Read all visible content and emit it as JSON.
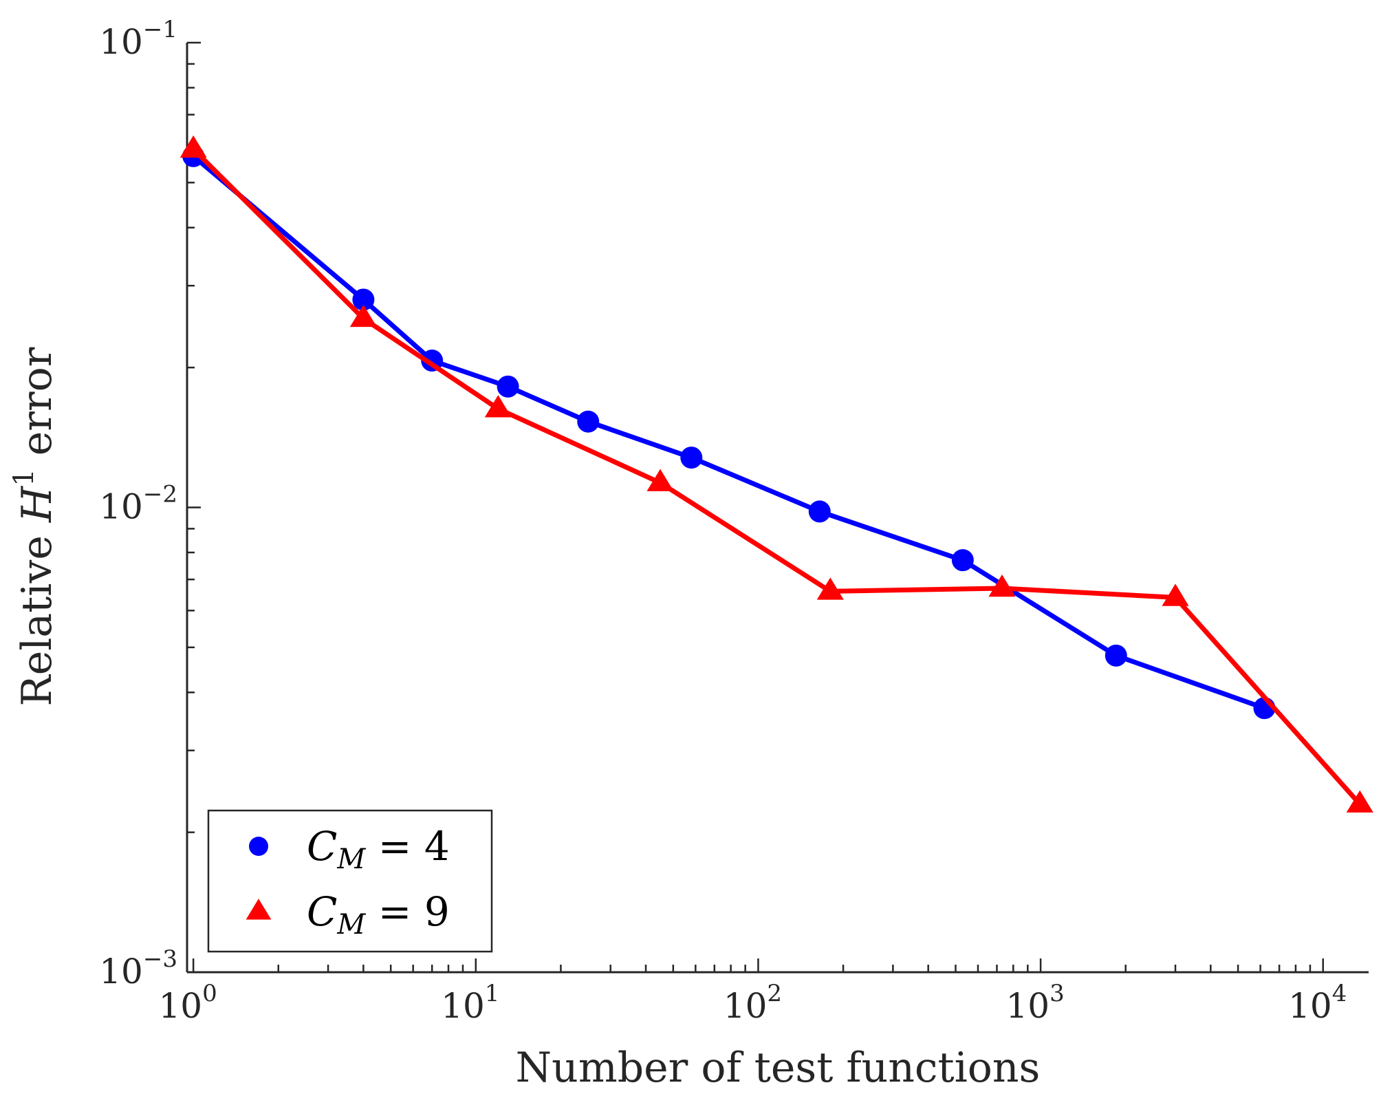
{
  "chart_data": {
    "type": "line",
    "xscale": "log",
    "yscale": "log",
    "xlabel": "Number of test functions",
    "ylabel": {
      "prefix": "Relative ",
      "symbol": "H",
      "superscript": "1",
      "suffix": " error"
    },
    "xlim": [
      0.95,
      14500
    ],
    "ylim": [
      0.001,
      0.1
    ],
    "xticks": [
      {
        "value": 1,
        "base": "10",
        "exp": "0"
      },
      {
        "value": 10,
        "base": "10",
        "exp": "1"
      },
      {
        "value": 100,
        "base": "10",
        "exp": "2"
      },
      {
        "value": 1000,
        "base": "10",
        "exp": "3"
      },
      {
        "value": 10000,
        "base": "10",
        "exp": "4"
      }
    ],
    "yticks": [
      {
        "value": 0.001,
        "base": "10",
        "exp": "−3"
      },
      {
        "value": 0.01,
        "base": "10",
        "exp": "−2"
      },
      {
        "value": 0.1,
        "base": "10",
        "exp": "−1"
      }
    ],
    "grid": false,
    "legend_position": "bottom-left",
    "series": [
      {
        "name": "C_M = 4",
        "legend": {
          "symbol": "C",
          "sub": "M",
          "rest": " = 4"
        },
        "color": "#0000ff",
        "marker": "circle",
        "x": [
          1,
          4,
          7,
          13,
          25,
          58,
          165,
          530,
          1850,
          6200
        ],
        "y": [
          0.057,
          0.028,
          0.0207,
          0.0182,
          0.0153,
          0.0128,
          0.0098,
          0.0077,
          0.0048,
          0.0037
        ]
      },
      {
        "name": "C_M = 9",
        "legend": {
          "symbol": "C",
          "sub": "M",
          "rest": " = 9"
        },
        "color": "#ff0000",
        "marker": "triangle",
        "x": [
          1,
          4,
          12,
          45,
          180,
          730,
          3000,
          13500
        ],
        "y": [
          0.059,
          0.0255,
          0.0163,
          0.0113,
          0.0066,
          0.0067,
          0.0064,
          0.0023
        ]
      }
    ]
  }
}
